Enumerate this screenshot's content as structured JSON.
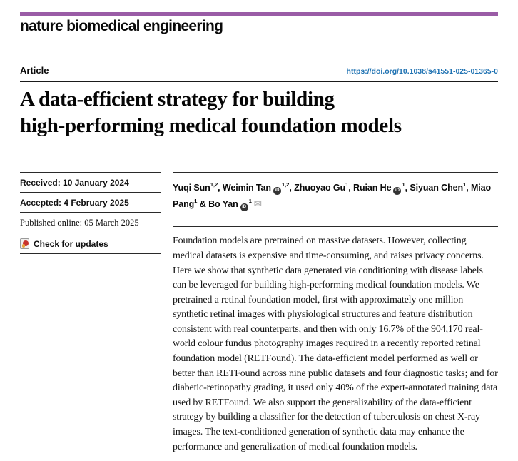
{
  "journal": {
    "name": "nature biomedical engineering",
    "accent_color": "#9A5CA6"
  },
  "header": {
    "article_type": "Article",
    "doi_url": "https://doi.org/10.1038/s41551-025-01365-0",
    "link_color": "#1F72B2"
  },
  "title": {
    "line1": "A data-efficient strategy for building",
    "line2": "high-performing medical foundation models"
  },
  "dates": {
    "received": "Received: 10 January 2024",
    "accepted": "Accepted: 4 February 2025",
    "published": "Published online: 05 March 2025"
  },
  "check_for_updates": {
    "label": "Check for updates",
    "icon": "crossmark-icon"
  },
  "authors": {
    "list": [
      {
        "name": "Yuqi Sun",
        "sup": "1,2",
        "orcid": false,
        "corresponding": false
      },
      {
        "name": "Weimin Tan",
        "sup": "1,2",
        "orcid": true,
        "corresponding": false
      },
      {
        "name": "Zhuoyao Gu",
        "sup": "1",
        "orcid": false,
        "corresponding": false
      },
      {
        "name": "Ruian He",
        "sup": "1",
        "orcid": true,
        "corresponding": false
      },
      {
        "name": "Siyuan Chen",
        "sup": "1",
        "orcid": false,
        "corresponding": false
      },
      {
        "name": "Miao Pang",
        "sup": "1",
        "orcid": false,
        "corresponding": false
      },
      {
        "name": "Bo Yan",
        "sup": "1",
        "orcid": true,
        "corresponding": true
      }
    ],
    "orcid_icon_label": "iD",
    "email_icon": "envelope-icon",
    "separator": ", ",
    "last_separator": " & "
  },
  "abstract": "Foundation models are pretrained on massive datasets. However, collecting medical datasets is expensive and time-consuming, and raises privacy concerns. Here we show that synthetic data generated via conditioning with disease labels can be leveraged for building high-performing medical foundation models. We pretrained a retinal foundation model, first with approximately one million synthetic retinal images with physiological structures and feature distribution consistent with real counterparts, and then with only 16.7% of the 904,170 real-world colour fundus photography images required in a recently reported retinal foundation model (RETFound). The data-efficient model performed as well or better than RETFound across nine public datasets and four diagnostic tasks; and for diabetic-retinopathy grading, it used only 40% of the expert-annotated training data used by RETFound. We also support the generalizability of the data-efficient strategy by building a classifier for the detection of tuberculosis on chest X-ray images. The text-conditioned generation of synthetic data may enhance the performance and generalization of medical foundation models."
}
